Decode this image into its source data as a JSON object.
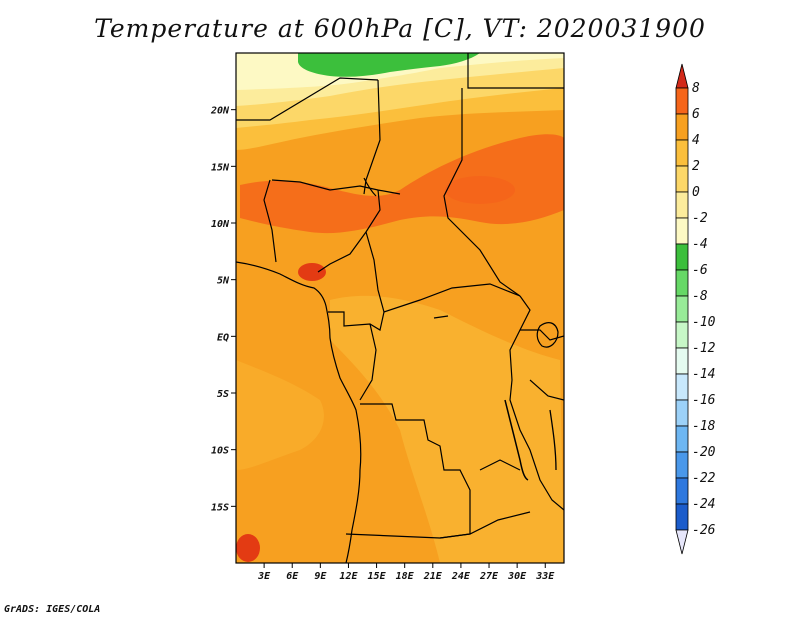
{
  "title": "Temperature at 600hPa [C], VT: 2020031900",
  "credit": "GrADS: IGES/COLA",
  "map": {
    "lon_range": [
      0,
      35
    ],
    "lat_range": [
      -20,
      25
    ],
    "x_ticks": [
      "3E",
      "6E",
      "9E",
      "12E",
      "15E",
      "18E",
      "21E",
      "24E",
      "27E",
      "30E",
      "33E"
    ],
    "y_ticks": [
      "20N",
      "15N",
      "10N",
      "5N",
      "EQ",
      "5S",
      "10S",
      "15S"
    ],
    "x_tick_values": [
      3,
      6,
      9,
      12,
      15,
      18,
      21,
      24,
      27,
      30,
      33
    ],
    "y_tick_values": [
      20,
      15,
      10,
      5,
      0,
      -5,
      -10,
      -15
    ]
  },
  "colorbar": {
    "labels": [
      "8",
      "6",
      "4",
      "2",
      "0",
      "-2",
      "-4",
      "-6",
      "-8",
      "-10",
      "-12",
      "-14",
      "-16",
      "-18",
      "-20",
      "-22",
      "-24",
      "-26"
    ],
    "colors": [
      "#e33b13",
      "#f5651a",
      "#f7a020",
      "#fbbf3c",
      "#fcd768",
      "#fcec9c",
      "#fdf9c4",
      "#3cbf3c",
      "#66d866",
      "#98eb98",
      "#c7f7c7",
      "#e5fbf0",
      "#c8e8fc",
      "#9cd1f8",
      "#6db6f2",
      "#4a98ea",
      "#2e78de",
      "#1b5ccb",
      "#0e3fae",
      "#0b1d80"
    ],
    "top_arrow_color": "#d2291a",
    "bottom_arrow_color": "#e6e6fa"
  }
}
